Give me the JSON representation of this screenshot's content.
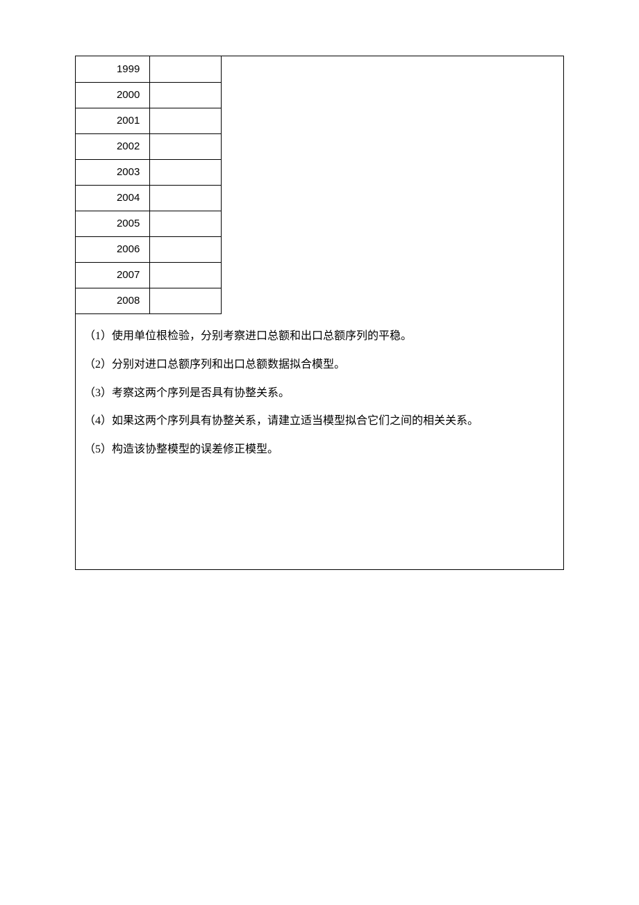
{
  "table": {
    "years": [
      "1999",
      "2000",
      "2001",
      "2002",
      "2003",
      "2004",
      "2005",
      "2006",
      "2007",
      "2008"
    ]
  },
  "questions": {
    "q1": "（1）使用单位根检验，分别考察进口总额和出口总额序列的平稳。",
    "q2": "（2）分别对进口总额序列和出口总额数据拟合模型。",
    "q3": "（3）考察这两个序列是否具有协整关系。",
    "q4": "（4）如果这两个序列具有协整关系，请建立适当模型拟合它们之间的相关关系。",
    "q5": "（5）构造该协整模型的误差修正模型。"
  }
}
